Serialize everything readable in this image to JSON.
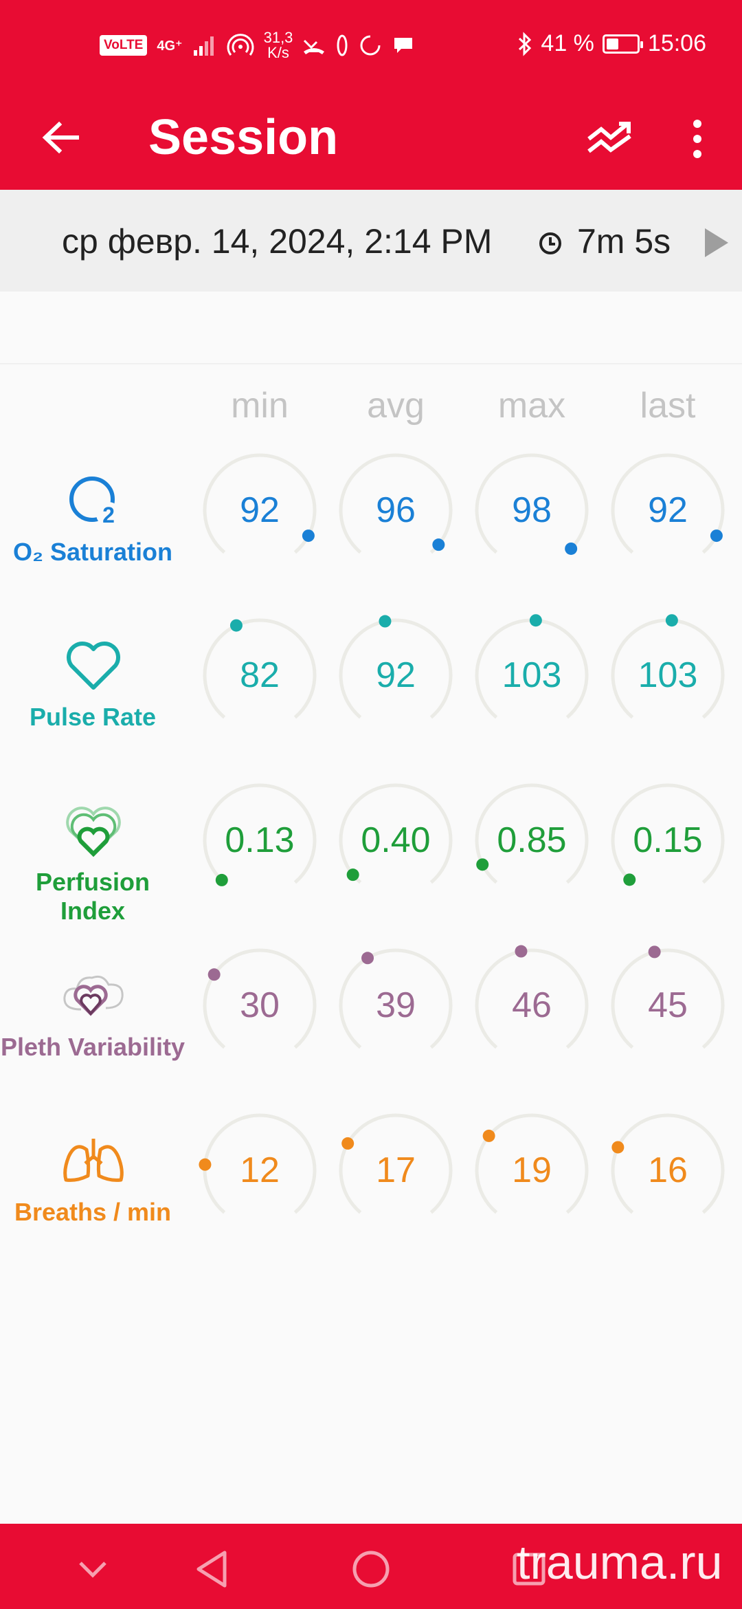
{
  "status_bar": {
    "volte": "VoLTE",
    "network": "4G⁺",
    "data_speed_value": "31,3",
    "data_speed_unit": "K/s",
    "battery": "41 %",
    "battery_level": 0.41,
    "time": "15:06"
  },
  "app_bar": {
    "title": "Session",
    "back_icon": "arrow-left-icon",
    "trend_icon": "trend-icon",
    "menu_icon": "more-vert-icon"
  },
  "session": {
    "date": "ср февр. 14, 2024, 2:14 PM",
    "duration": "7m 5s"
  },
  "columns": [
    "min",
    "avg",
    "max",
    "last"
  ],
  "metrics": [
    {
      "label": "O₂ Saturation",
      "icon": "o2-icon",
      "color": "#1a80d6",
      "values": [
        "92",
        "96",
        "98",
        "92"
      ],
      "levels": [
        0.92,
        0.96,
        0.98,
        0.92
      ]
    },
    {
      "label": "Pulse Rate",
      "icon": "heart-icon",
      "color": "#1aadab",
      "values": [
        "82",
        "92",
        "103",
        "103"
      ],
      "levels": [
        0.41,
        0.46,
        0.515,
        0.515
      ]
    },
    {
      "label": "Perfusion Index",
      "icon": "perfusion-heart-icon",
      "color": "#1f9e3a",
      "values": [
        "0.13",
        "0.40",
        "0.85",
        "0.15"
      ],
      "levels": [
        0.013,
        0.04,
        0.085,
        0.015
      ]
    },
    {
      "label": "Pleth Variability",
      "icon": "pleth-heart-icon",
      "color": "#9c6a92",
      "values": [
        "30",
        "39",
        "46",
        "45"
      ],
      "levels": [
        0.3,
        0.39,
        0.46,
        0.45
      ]
    },
    {
      "label": "Breaths / min",
      "icon": "lungs-icon",
      "color": "#f08a1c",
      "values": [
        "12",
        "17",
        "19",
        "16"
      ],
      "levels": [
        0.2,
        0.283,
        0.317,
        0.267
      ]
    }
  ],
  "nav": {
    "down_icon": "chevron-down-icon",
    "back_icon": "nav-back-icon",
    "home_icon": "nav-home-icon",
    "recents_icon": "nav-recents-icon"
  },
  "watermark": "trauma.ru"
}
